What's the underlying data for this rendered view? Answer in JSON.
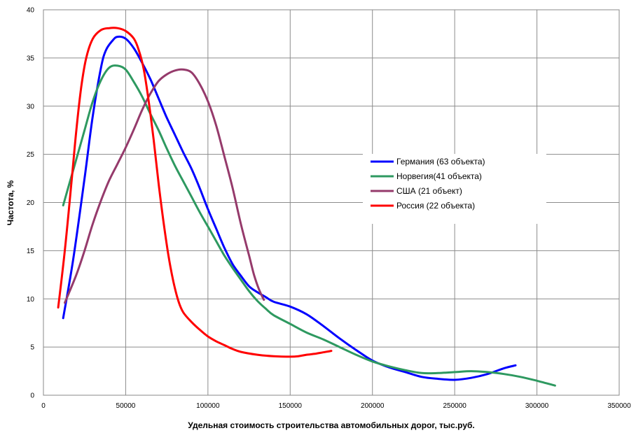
{
  "chart_data": {
    "type": "line",
    "xlabel": "Удельная стоимость  строительства автомобильных дорог,  тыс.руб.",
    "ylabel": "Частота,  %",
    "xlim": [
      0,
      350000
    ],
    "ylim": [
      0,
      40
    ],
    "x_ticks": [
      "0",
      "50000",
      "100000",
      "150000",
      "200000",
      "250000",
      "300000",
      "350000"
    ],
    "y_ticks": [
      "0",
      "5",
      "10",
      "15",
      "20",
      "25",
      "30",
      "35",
      "40"
    ],
    "grid": true,
    "legend_position": "right",
    "series": [
      {
        "name": "Германия (63 объекта)",
        "color": "#0000FF",
        "points": [
          [
            12000,
            8.0
          ],
          [
            18000,
            14.0
          ],
          [
            25000,
            22.5
          ],
          [
            30000,
            29.0
          ],
          [
            35000,
            34.0
          ],
          [
            38000,
            35.8
          ],
          [
            42000,
            36.8
          ],
          [
            45000,
            37.2
          ],
          [
            50000,
            37.0
          ],
          [
            55000,
            36.0
          ],
          [
            60000,
            34.5
          ],
          [
            65000,
            32.8
          ],
          [
            70000,
            30.8
          ],
          [
            75000,
            28.8
          ],
          [
            80000,
            27.0
          ],
          [
            85000,
            25.2
          ],
          [
            90000,
            23.5
          ],
          [
            95000,
            21.5
          ],
          [
            100000,
            19.3
          ],
          [
            105000,
            17.3
          ],
          [
            110000,
            15.3
          ],
          [
            115000,
            13.6
          ],
          [
            120000,
            12.4
          ],
          [
            125000,
            11.3
          ],
          [
            130000,
            10.7
          ],
          [
            135000,
            10.2
          ],
          [
            140000,
            9.7
          ],
          [
            150000,
            9.2
          ],
          [
            160000,
            8.4
          ],
          [
            170000,
            7.2
          ],
          [
            180000,
            5.9
          ],
          [
            190000,
            4.7
          ],
          [
            200000,
            3.6
          ],
          [
            210000,
            2.9
          ],
          [
            220000,
            2.4
          ],
          [
            230000,
            1.9
          ],
          [
            240000,
            1.7
          ],
          [
            250000,
            1.6
          ],
          [
            260000,
            1.8
          ],
          [
            270000,
            2.2
          ],
          [
            280000,
            2.8
          ],
          [
            287000,
            3.1
          ]
        ]
      },
      {
        "name": "Норвегия(41 объекта)",
        "color": "#2E9960",
        "points": [
          [
            12000,
            19.7
          ],
          [
            15000,
            21.5
          ],
          [
            20000,
            24.5
          ],
          [
            25000,
            27.5
          ],
          [
            30000,
            30.5
          ],
          [
            35000,
            32.7
          ],
          [
            40000,
            34.0
          ],
          [
            45000,
            34.2
          ],
          [
            50000,
            33.8
          ],
          [
            55000,
            32.5
          ],
          [
            60000,
            31.0
          ],
          [
            65000,
            29.2
          ],
          [
            70000,
            27.5
          ],
          [
            75000,
            25.6
          ],
          [
            80000,
            23.8
          ],
          [
            85000,
            22.2
          ],
          [
            90000,
            20.6
          ],
          [
            95000,
            19.0
          ],
          [
            100000,
            17.5
          ],
          [
            105000,
            16.0
          ],
          [
            110000,
            14.5
          ],
          [
            115000,
            13.2
          ],
          [
            120000,
            12.0
          ],
          [
            125000,
            10.8
          ],
          [
            130000,
            9.8
          ],
          [
            135000,
            9.0
          ],
          [
            140000,
            8.3
          ],
          [
            150000,
            7.4
          ],
          [
            160000,
            6.5
          ],
          [
            170000,
            5.8
          ],
          [
            180000,
            5.0
          ],
          [
            190000,
            4.2
          ],
          [
            200000,
            3.5
          ],
          [
            210000,
            3.0
          ],
          [
            220000,
            2.6
          ],
          [
            230000,
            2.3
          ],
          [
            240000,
            2.3
          ],
          [
            250000,
            2.4
          ],
          [
            260000,
            2.5
          ],
          [
            270000,
            2.4
          ],
          [
            280000,
            2.2
          ],
          [
            290000,
            1.9
          ],
          [
            300000,
            1.5
          ],
          [
            311000,
            1.0
          ]
        ]
      },
      {
        "name": "США (21 объект)",
        "color": "#953A6B",
        "points": [
          [
            13000,
            9.6
          ],
          [
            20000,
            12.5
          ],
          [
            25000,
            15.0
          ],
          [
            30000,
            17.8
          ],
          [
            35000,
            20.2
          ],
          [
            40000,
            22.3
          ],
          [
            45000,
            24.0
          ],
          [
            50000,
            25.7
          ],
          [
            55000,
            27.6
          ],
          [
            60000,
            29.6
          ],
          [
            65000,
            31.3
          ],
          [
            70000,
            32.6
          ],
          [
            75000,
            33.3
          ],
          [
            80000,
            33.7
          ],
          [
            85000,
            33.8
          ],
          [
            90000,
            33.5
          ],
          [
            95000,
            32.3
          ],
          [
            100000,
            30.5
          ],
          [
            105000,
            28.0
          ],
          [
            110000,
            24.8
          ],
          [
            115000,
            21.5
          ],
          [
            120000,
            17.8
          ],
          [
            125000,
            14.5
          ],
          [
            128000,
            12.5
          ],
          [
            131000,
            11.0
          ],
          [
            134000,
            9.9
          ]
        ]
      },
      {
        "name": "Россия (22 объекта)",
        "color": "#FF0000",
        "points": [
          [
            9000,
            9.1
          ],
          [
            13000,
            15.0
          ],
          [
            17000,
            22.0
          ],
          [
            20000,
            27.5
          ],
          [
            23000,
            32.0
          ],
          [
            26000,
            35.0
          ],
          [
            30000,
            37.0
          ],
          [
            35000,
            37.9
          ],
          [
            40000,
            38.1
          ],
          [
            45000,
            38.1
          ],
          [
            50000,
            37.8
          ],
          [
            55000,
            37.0
          ],
          [
            58000,
            35.8
          ],
          [
            61000,
            33.8
          ],
          [
            64000,
            30.5
          ],
          [
            67000,
            26.5
          ],
          [
            70000,
            22.0
          ],
          [
            73000,
            18.0
          ],
          [
            76000,
            14.5
          ],
          [
            79000,
            11.8
          ],
          [
            82000,
            9.8
          ],
          [
            85000,
            8.6
          ],
          [
            90000,
            7.6
          ],
          [
            95000,
            6.8
          ],
          [
            100000,
            6.1
          ],
          [
            105000,
            5.6
          ],
          [
            110000,
            5.2
          ],
          [
            115000,
            4.8
          ],
          [
            120000,
            4.5
          ],
          [
            130000,
            4.2
          ],
          [
            140000,
            4.05
          ],
          [
            150000,
            4.0
          ],
          [
            155000,
            4.05
          ],
          [
            160000,
            4.2
          ],
          [
            165000,
            4.3
          ],
          [
            170000,
            4.45
          ],
          [
            175000,
            4.6
          ]
        ]
      }
    ]
  }
}
